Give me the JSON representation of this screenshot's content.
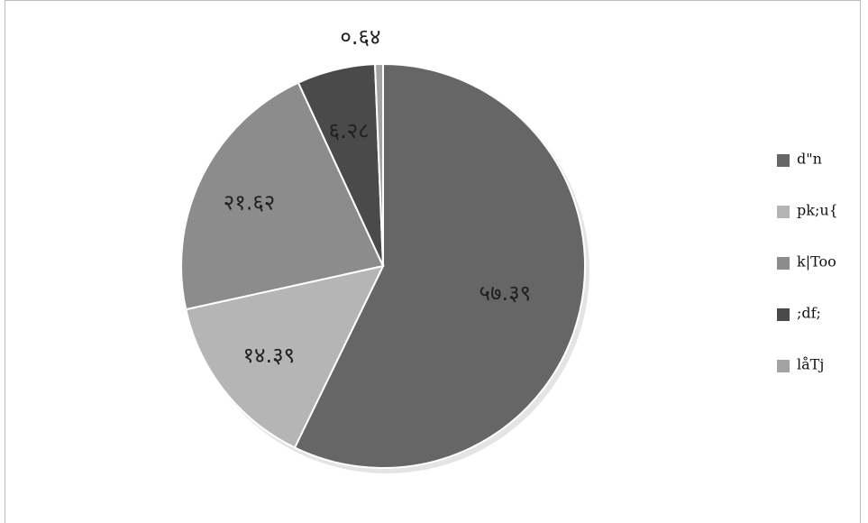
{
  "chart_data": {
    "type": "pie",
    "title": "",
    "slices": [
      {
        "legend": "d\"n",
        "label": "५७.३९",
        "value": 57.39,
        "color": "#666666"
      },
      {
        "legend": "pk;u{",
        "label": "१४.३९",
        "value": 14.39,
        "color": "#b5b5b5"
      },
      {
        "legend": "k|Too",
        "label": "२१.६२",
        "value": 21.62,
        "color": "#8c8c8c"
      },
      {
        "legend": ";df;",
        "label": "६.२८",
        "value": 6.28,
        "color": "#4a4a4a"
      },
      {
        "legend": "låTj",
        "label": "०.६४",
        "value": 0.64,
        "color": "#a3a3a3"
      }
    ],
    "start_angle": "12 o'clock",
    "direction": "clockwise",
    "legend_position": "right"
  }
}
